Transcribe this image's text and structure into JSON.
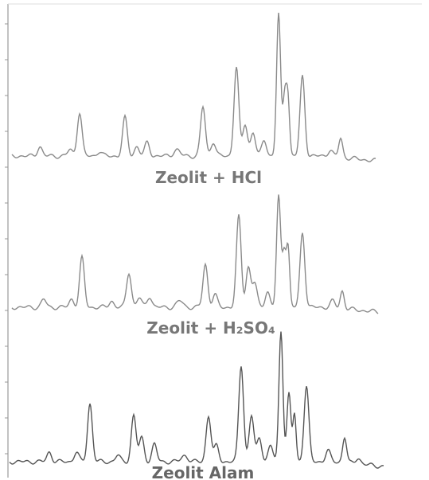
{
  "labels": [
    "Zeolit + HCl",
    "Zeolit + H₂SO₄",
    "Zeolit Alam"
  ]
}
